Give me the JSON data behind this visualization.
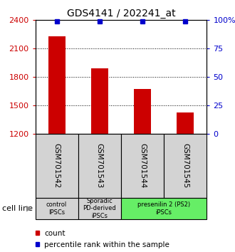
{
  "title": "GDS4141 / 202241_at",
  "samples": [
    "GSM701542",
    "GSM701543",
    "GSM701544",
    "GSM701545"
  ],
  "counts": [
    2230,
    1890,
    1670,
    1420
  ],
  "percentiles": [
    99,
    99,
    99,
    99
  ],
  "ylim_left": [
    1200,
    2400
  ],
  "ylim_right": [
    0,
    100
  ],
  "yticks_left": [
    1200,
    1500,
    1800,
    2100,
    2400
  ],
  "yticks_right": [
    0,
    25,
    50,
    75,
    100
  ],
  "bar_color": "#cc0000",
  "dot_color": "#0000cc",
  "bar_bottom": 1200,
  "groups": [
    {
      "label": "control\nIPSCs",
      "start": 0,
      "end": 1,
      "color": "#d3d3d3"
    },
    {
      "label": "Sporadic\nPD-derived\niPSCs",
      "start": 1,
      "end": 2,
      "color": "#d3d3d3"
    },
    {
      "label": "presenilin 2 (PS2)\niPSCs",
      "start": 2,
      "end": 4,
      "color": "#66ee66"
    }
  ],
  "sample_box_color": "#d3d3d3",
  "cell_line_label": "cell line",
  "legend_count_label": "count",
  "legend_percentile_label": "percentile rank within the sample",
  "left_axis_color": "#cc0000",
  "right_axis_color": "#0000cc",
  "title_fontsize": 10,
  "bar_width": 0.4
}
